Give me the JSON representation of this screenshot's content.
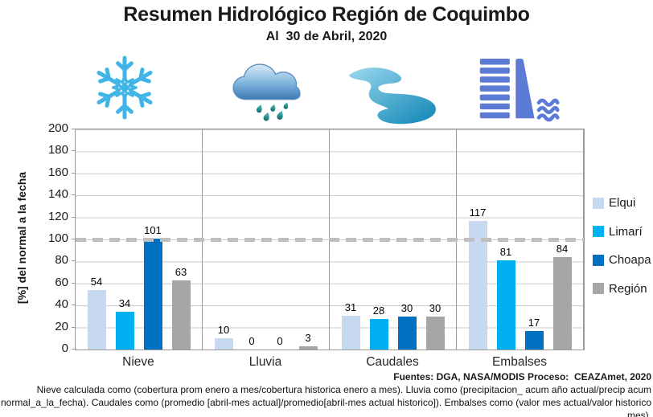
{
  "header": {
    "title": "Resumen Hidrológico Región de Coquimbo",
    "subtitle": "Al  30 de Abril, 2020"
  },
  "chart_data": {
    "type": "bar",
    "categories": [
      "Nieve",
      "Lluvia",
      "Caudales",
      "Embalses"
    ],
    "series": [
      {
        "name": "Elqui",
        "color": "#C6D9F1",
        "values": [
          54,
          10,
          31,
          117
        ]
      },
      {
        "name": "Limarí",
        "color": "#00B0F0",
        "values": [
          34,
          0,
          28,
          81
        ]
      },
      {
        "name": "Choapa",
        "color": "#0070C0",
        "values": [
          101,
          0,
          30,
          17
        ]
      },
      {
        "name": "Región",
        "color": "#A6A6A6",
        "values": [
          63,
          3,
          30,
          84
        ]
      }
    ],
    "ylabel": "[%] del normal a la fecha",
    "xlabel": "",
    "ylim": [
      0,
      200
    ],
    "y_tick_step": 20,
    "reference_line": 100,
    "grid": true,
    "bar_labels": true,
    "legend_position": "right"
  },
  "icons": [
    {
      "name": "snowflake-icon",
      "represents": "Nieve"
    },
    {
      "name": "rain-cloud-icon",
      "represents": "Lluvia"
    },
    {
      "name": "river-icon",
      "represents": "Caudales"
    },
    {
      "name": "dam-icon",
      "represents": "Embalses"
    }
  ],
  "colors": {
    "grid": "#C9C9C9",
    "plot_border": "#9A9A9A",
    "reference_line": "#BFBFBF",
    "snowflake": "#41B6E6",
    "cloud_top": "#D9ECF8",
    "cloud_bottom": "#3C79B4",
    "raindrop_top": "#59C0C0",
    "raindrop_bottom": "#0B6B6B",
    "river_light": "#9AD8EE",
    "river_dark": "#0F85B5",
    "dam": "#5B7BD5"
  },
  "footer": {
    "sources": "Fuentes: DGA, NASA/MODIS Proceso:  CEAZAmet, 2020",
    "note": "Nieve calculada como (cobertura prom enero a mes/cobertura historica enero a mes). Lluvia como (precipitacion_ acum año actual/precip acum normal_a_la_fecha). Caudales como (promedio [abril-mes actual]/promedio[abril-mes actual historico]). Embalses como (valor mes actual/valor historico mes)."
  }
}
